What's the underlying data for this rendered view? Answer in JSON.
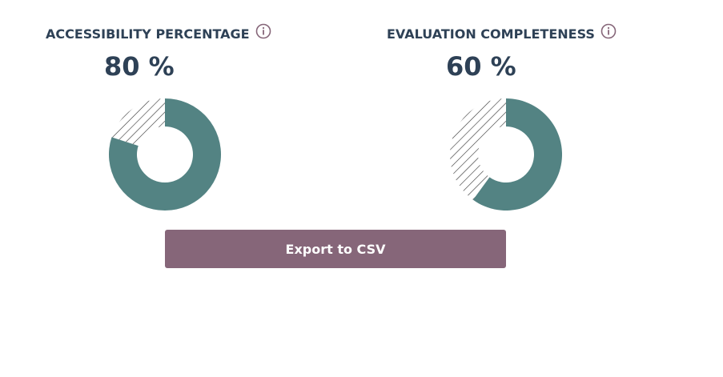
{
  "metrics": {
    "accessibility": {
      "title": "ACCESSIBILITY PERCENTAGE",
      "value_label": "80 %",
      "percent": 80
    },
    "evaluation": {
      "title": "EVALUATION COMPLETENESS",
      "value_label": "60 %",
      "percent": 60
    }
  },
  "icons": {
    "info": "info-circle-icon"
  },
  "colors": {
    "text": "#2e4156",
    "donut_fill": "#538383",
    "hatch": "#2e2e2e",
    "info_icon": "#866679",
    "button_bg": "#866679",
    "button_text": "#ffffff"
  },
  "actions": {
    "export_label": "Export to CSV"
  }
}
